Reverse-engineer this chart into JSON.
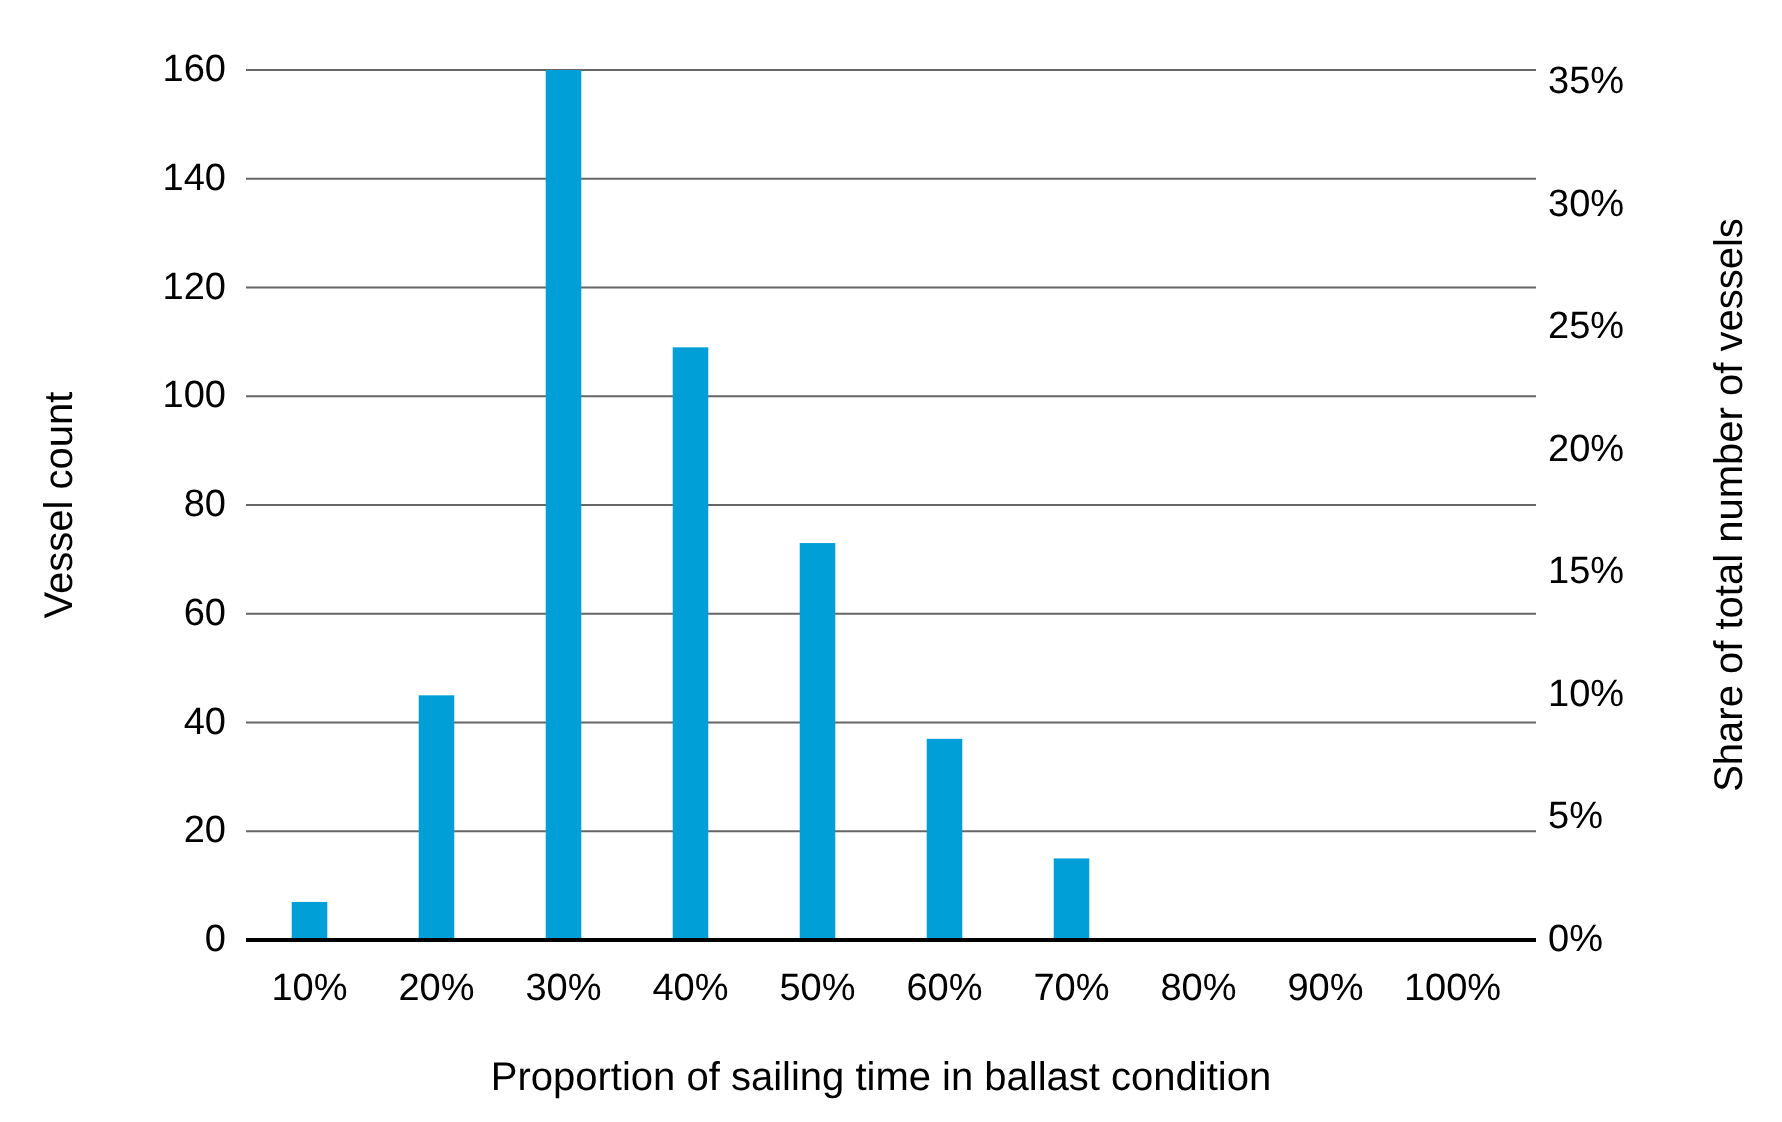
{
  "chart_data": {
    "type": "bar",
    "xlabel": "Proportion of sailing time in ballast condition",
    "ylabel": "Vessel count",
    "y2label": "Share of total number of vessels",
    "categories": [
      "10%",
      "20%",
      "30%",
      "40%",
      "50%",
      "60%",
      "70%",
      "80%",
      "90%",
      "100%"
    ],
    "values": [
      7,
      45,
      160,
      109,
      73,
      37,
      15,
      0,
      0,
      0
    ],
    "color": "#009fd8",
    "ylim": [
      0,
      160
    ],
    "yticks": [
      0,
      20,
      40,
      60,
      80,
      100,
      120,
      140,
      160
    ],
    "y2lim": [
      0,
      35.5
    ],
    "y2ticks": [
      {
        "value": 0,
        "label": "0%"
      },
      {
        "value": 5,
        "label": "5%"
      },
      {
        "value": 10,
        "label": "10%"
      },
      {
        "value": 15,
        "label": "15%"
      },
      {
        "value": 20,
        "label": "20%"
      },
      {
        "value": 25,
        "label": "25%"
      },
      {
        "value": 30,
        "label": "30%"
      },
      {
        "value": 35,
        "label": "35%"
      }
    ],
    "grid": "y"
  }
}
